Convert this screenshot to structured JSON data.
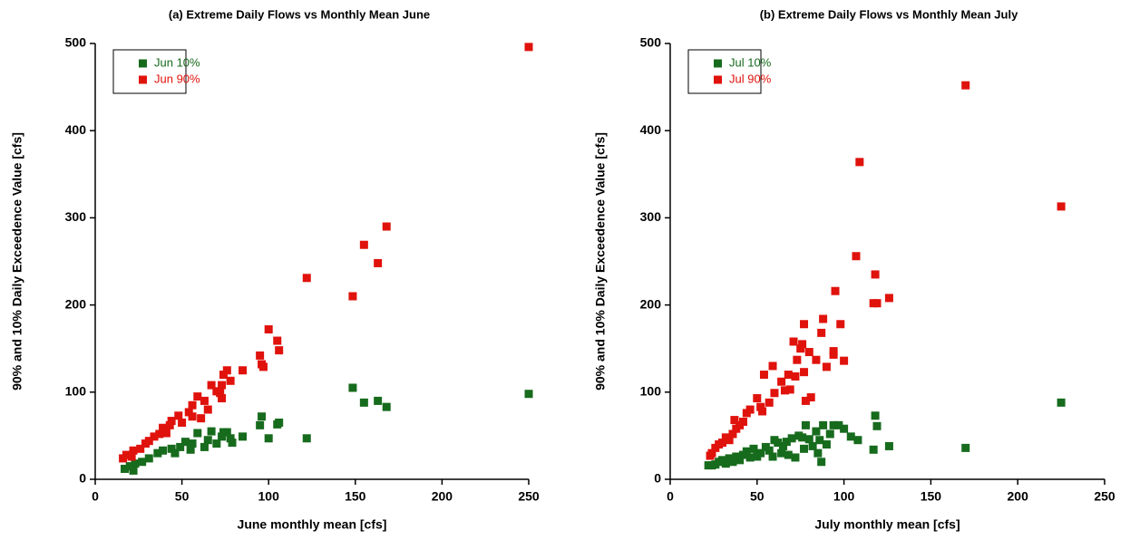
{
  "chart_data": [
    {
      "type": "scatter",
      "title": "(a)  Extreme Daily Flows vs Monthly Mean    June",
      "xlabel": "June monthly mean   [cfs]",
      "ylabel": "90% and 10% Daily Exceedence Value   [cfs]",
      "xlim": [
        0,
        250
      ],
      "ylim": [
        0,
        500
      ],
      "xticks": [
        0,
        50,
        100,
        150,
        200,
        250
      ],
      "yticks": [
        0,
        100,
        200,
        300,
        400,
        500
      ],
      "grid": false,
      "legend": "upper left",
      "series": [
        {
          "name": "Jun 10%",
          "color": "#176b1d",
          "x": [
            250,
            148.5,
            155,
            163,
            168,
            122,
            100,
            105,
            106,
            95,
            96,
            85,
            76,
            74,
            78,
            73,
            67,
            65,
            59,
            56,
            52,
            49,
            44,
            39,
            36,
            31,
            27,
            23,
            20,
            17,
            22,
            46,
            55,
            63,
            70,
            79
          ],
          "values": [
            98,
            105,
            88,
            90,
            83,
            47,
            47,
            63,
            65,
            62,
            72,
            49,
            54,
            54,
            47,
            49,
            55,
            45,
            53,
            41,
            43,
            37,
            35,
            33,
            30,
            24,
            20,
            18,
            15,
            12,
            10,
            30,
            34,
            37,
            41,
            42
          ]
        },
        {
          "name": "Jun 90%",
          "color": "#e0120c",
          "x": [
            250,
            148.5,
            155,
            163,
            168,
            122,
            100,
            105,
            106,
            95,
            96,
            97,
            85,
            76,
            74,
            78,
            73,
            67,
            70,
            72,
            73,
            59,
            63,
            56,
            65,
            54,
            56,
            50,
            44,
            43,
            39,
            37,
            41,
            34,
            31,
            29,
            26,
            22,
            18,
            16,
            21,
            48,
            61
          ],
          "values": [
            496,
            210,
            269,
            248,
            290,
            231,
            172,
            159,
            148,
            142,
            132,
            129,
            125,
            125,
            120,
            113,
            108,
            108,
            101,
            99,
            93,
            95,
            90,
            85,
            80,
            77,
            72,
            65,
            67,
            62,
            59,
            52,
            53,
            49,
            44,
            41,
            35,
            33,
            28,
            24,
            26,
            73,
            70
          ]
        }
      ]
    },
    {
      "type": "scatter",
      "title": "(b)  Extreme Daily Flows vs Monthly Mean    July",
      "xlabel": "July monthly mean   [cfs]",
      "ylabel": "90% and 10% Daily Exceedence Value   [cfs]",
      "xlim": [
        0,
        250
      ],
      "ylim": [
        0,
        500
      ],
      "xticks": [
        0,
        50,
        100,
        150,
        200,
        250
      ],
      "yticks": [
        0,
        100,
        200,
        300,
        400,
        500
      ],
      "grid": false,
      "legend": "upper left",
      "series": [
        {
          "name": "Jul 10%",
          "color": "#176b1d",
          "x": [
            225,
            170,
            126,
            118,
            117,
            119,
            108,
            104,
            100,
            97,
            94,
            92,
            90,
            88,
            87,
            86,
            84,
            82,
            80,
            78,
            77,
            76,
            74,
            72,
            70,
            68,
            67,
            65,
            62,
            60,
            59,
            57,
            55,
            52,
            50,
            48,
            46,
            44,
            42,
            40,
            38,
            36,
            34,
            32,
            30,
            28,
            26,
            24,
            22,
            64,
            85
          ],
          "values": [
            88,
            36,
            38,
            73,
            34,
            61,
            45,
            49,
            58,
            62,
            62,
            52,
            40,
            62,
            20,
            45,
            55,
            38,
            46,
            62,
            35,
            48,
            50,
            25,
            47,
            28,
            43,
            38,
            42,
            45,
            26,
            33,
            37,
            30,
            26,
            35,
            25,
            32,
            28,
            22,
            26,
            20,
            24,
            18,
            22,
            20,
            17,
            16,
            16,
            30,
            30
          ]
        },
        {
          "name": "Jul 90%",
          "color": "#e0120c",
          "x": [
            225,
            170,
            109,
            107,
            118,
            117,
            119,
            126,
            95,
            98,
            100,
            94,
            94,
            88,
            87,
            90,
            84,
            80,
            81,
            77,
            76,
            75,
            77,
            73,
            71,
            72,
            68,
            69,
            66,
            64,
            60,
            59,
            57,
            54,
            52,
            50,
            46,
            44,
            42,
            40,
            38,
            37,
            36,
            34,
            32,
            30,
            28,
            26,
            24,
            23,
            53,
            78
          ],
          "values": [
            313,
            452,
            364,
            256,
            235,
            202,
            202,
            208,
            216,
            178,
            136,
            147,
            143,
            184,
            168,
            129,
            137,
            146,
            94,
            178,
            155,
            150,
            123,
            137,
            158,
            118,
            120,
            103,
            102,
            112,
            99,
            130,
            88,
            120,
            83,
            93,
            80,
            76,
            66,
            62,
            58,
            68,
            52,
            45,
            48,
            42,
            40,
            36,
            30,
            27,
            78,
            90
          ]
        }
      ]
    }
  ]
}
